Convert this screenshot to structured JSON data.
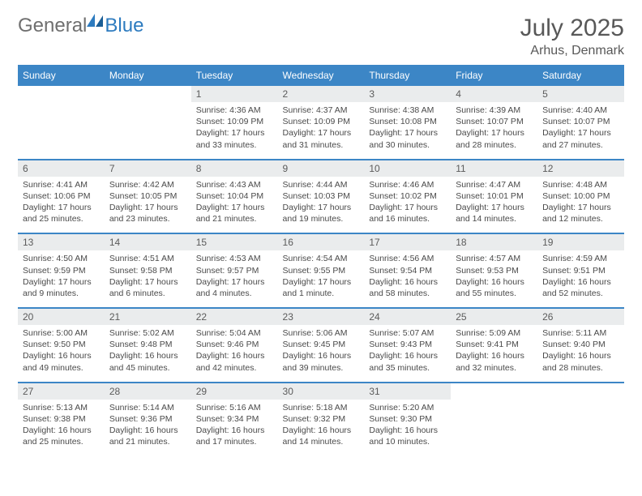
{
  "brand": {
    "word1": "General",
    "word2": "Blue"
  },
  "title": "July 2025",
  "location": "Arhus, Denmark",
  "colors": {
    "header_bg": "#3c86c6",
    "header_text": "#ffffff",
    "daynum_bg": "#eaeced",
    "body_text": "#4a4a4a",
    "title_text": "#585858",
    "logo_gray": "#6f6f6f",
    "logo_blue": "#2d7bbf",
    "rule": "#3c86c6"
  },
  "weekdays": [
    "Sunday",
    "Monday",
    "Tuesday",
    "Wednesday",
    "Thursday",
    "Friday",
    "Saturday"
  ],
  "weeks": [
    [
      null,
      null,
      {
        "n": "1",
        "sr": "4:36 AM",
        "ss": "10:09 PM",
        "dl": "17 hours and 33 minutes."
      },
      {
        "n": "2",
        "sr": "4:37 AM",
        "ss": "10:09 PM",
        "dl": "17 hours and 31 minutes."
      },
      {
        "n": "3",
        "sr": "4:38 AM",
        "ss": "10:08 PM",
        "dl": "17 hours and 30 minutes."
      },
      {
        "n": "4",
        "sr": "4:39 AM",
        "ss": "10:07 PM",
        "dl": "17 hours and 28 minutes."
      },
      {
        "n": "5",
        "sr": "4:40 AM",
        "ss": "10:07 PM",
        "dl": "17 hours and 27 minutes."
      }
    ],
    [
      {
        "n": "6",
        "sr": "4:41 AM",
        "ss": "10:06 PM",
        "dl": "17 hours and 25 minutes."
      },
      {
        "n": "7",
        "sr": "4:42 AM",
        "ss": "10:05 PM",
        "dl": "17 hours and 23 minutes."
      },
      {
        "n": "8",
        "sr": "4:43 AM",
        "ss": "10:04 PM",
        "dl": "17 hours and 21 minutes."
      },
      {
        "n": "9",
        "sr": "4:44 AM",
        "ss": "10:03 PM",
        "dl": "17 hours and 19 minutes."
      },
      {
        "n": "10",
        "sr": "4:46 AM",
        "ss": "10:02 PM",
        "dl": "17 hours and 16 minutes."
      },
      {
        "n": "11",
        "sr": "4:47 AM",
        "ss": "10:01 PM",
        "dl": "17 hours and 14 minutes."
      },
      {
        "n": "12",
        "sr": "4:48 AM",
        "ss": "10:00 PM",
        "dl": "17 hours and 12 minutes."
      }
    ],
    [
      {
        "n": "13",
        "sr": "4:50 AM",
        "ss": "9:59 PM",
        "dl": "17 hours and 9 minutes."
      },
      {
        "n": "14",
        "sr": "4:51 AM",
        "ss": "9:58 PM",
        "dl": "17 hours and 6 minutes."
      },
      {
        "n": "15",
        "sr": "4:53 AM",
        "ss": "9:57 PM",
        "dl": "17 hours and 4 minutes."
      },
      {
        "n": "16",
        "sr": "4:54 AM",
        "ss": "9:55 PM",
        "dl": "17 hours and 1 minute."
      },
      {
        "n": "17",
        "sr": "4:56 AM",
        "ss": "9:54 PM",
        "dl": "16 hours and 58 minutes."
      },
      {
        "n": "18",
        "sr": "4:57 AM",
        "ss": "9:53 PM",
        "dl": "16 hours and 55 minutes."
      },
      {
        "n": "19",
        "sr": "4:59 AM",
        "ss": "9:51 PM",
        "dl": "16 hours and 52 minutes."
      }
    ],
    [
      {
        "n": "20",
        "sr": "5:00 AM",
        "ss": "9:50 PM",
        "dl": "16 hours and 49 minutes."
      },
      {
        "n": "21",
        "sr": "5:02 AM",
        "ss": "9:48 PM",
        "dl": "16 hours and 45 minutes."
      },
      {
        "n": "22",
        "sr": "5:04 AM",
        "ss": "9:46 PM",
        "dl": "16 hours and 42 minutes."
      },
      {
        "n": "23",
        "sr": "5:06 AM",
        "ss": "9:45 PM",
        "dl": "16 hours and 39 minutes."
      },
      {
        "n": "24",
        "sr": "5:07 AM",
        "ss": "9:43 PM",
        "dl": "16 hours and 35 minutes."
      },
      {
        "n": "25",
        "sr": "5:09 AM",
        "ss": "9:41 PM",
        "dl": "16 hours and 32 minutes."
      },
      {
        "n": "26",
        "sr": "5:11 AM",
        "ss": "9:40 PM",
        "dl": "16 hours and 28 minutes."
      }
    ],
    [
      {
        "n": "27",
        "sr": "5:13 AM",
        "ss": "9:38 PM",
        "dl": "16 hours and 25 minutes."
      },
      {
        "n": "28",
        "sr": "5:14 AM",
        "ss": "9:36 PM",
        "dl": "16 hours and 21 minutes."
      },
      {
        "n": "29",
        "sr": "5:16 AM",
        "ss": "9:34 PM",
        "dl": "16 hours and 17 minutes."
      },
      {
        "n": "30",
        "sr": "5:18 AM",
        "ss": "9:32 PM",
        "dl": "16 hours and 14 minutes."
      },
      {
        "n": "31",
        "sr": "5:20 AM",
        "ss": "9:30 PM",
        "dl": "16 hours and 10 minutes."
      },
      null,
      null
    ]
  ],
  "labels": {
    "sunrise": "Sunrise:",
    "sunset": "Sunset:",
    "daylight": "Daylight:"
  }
}
